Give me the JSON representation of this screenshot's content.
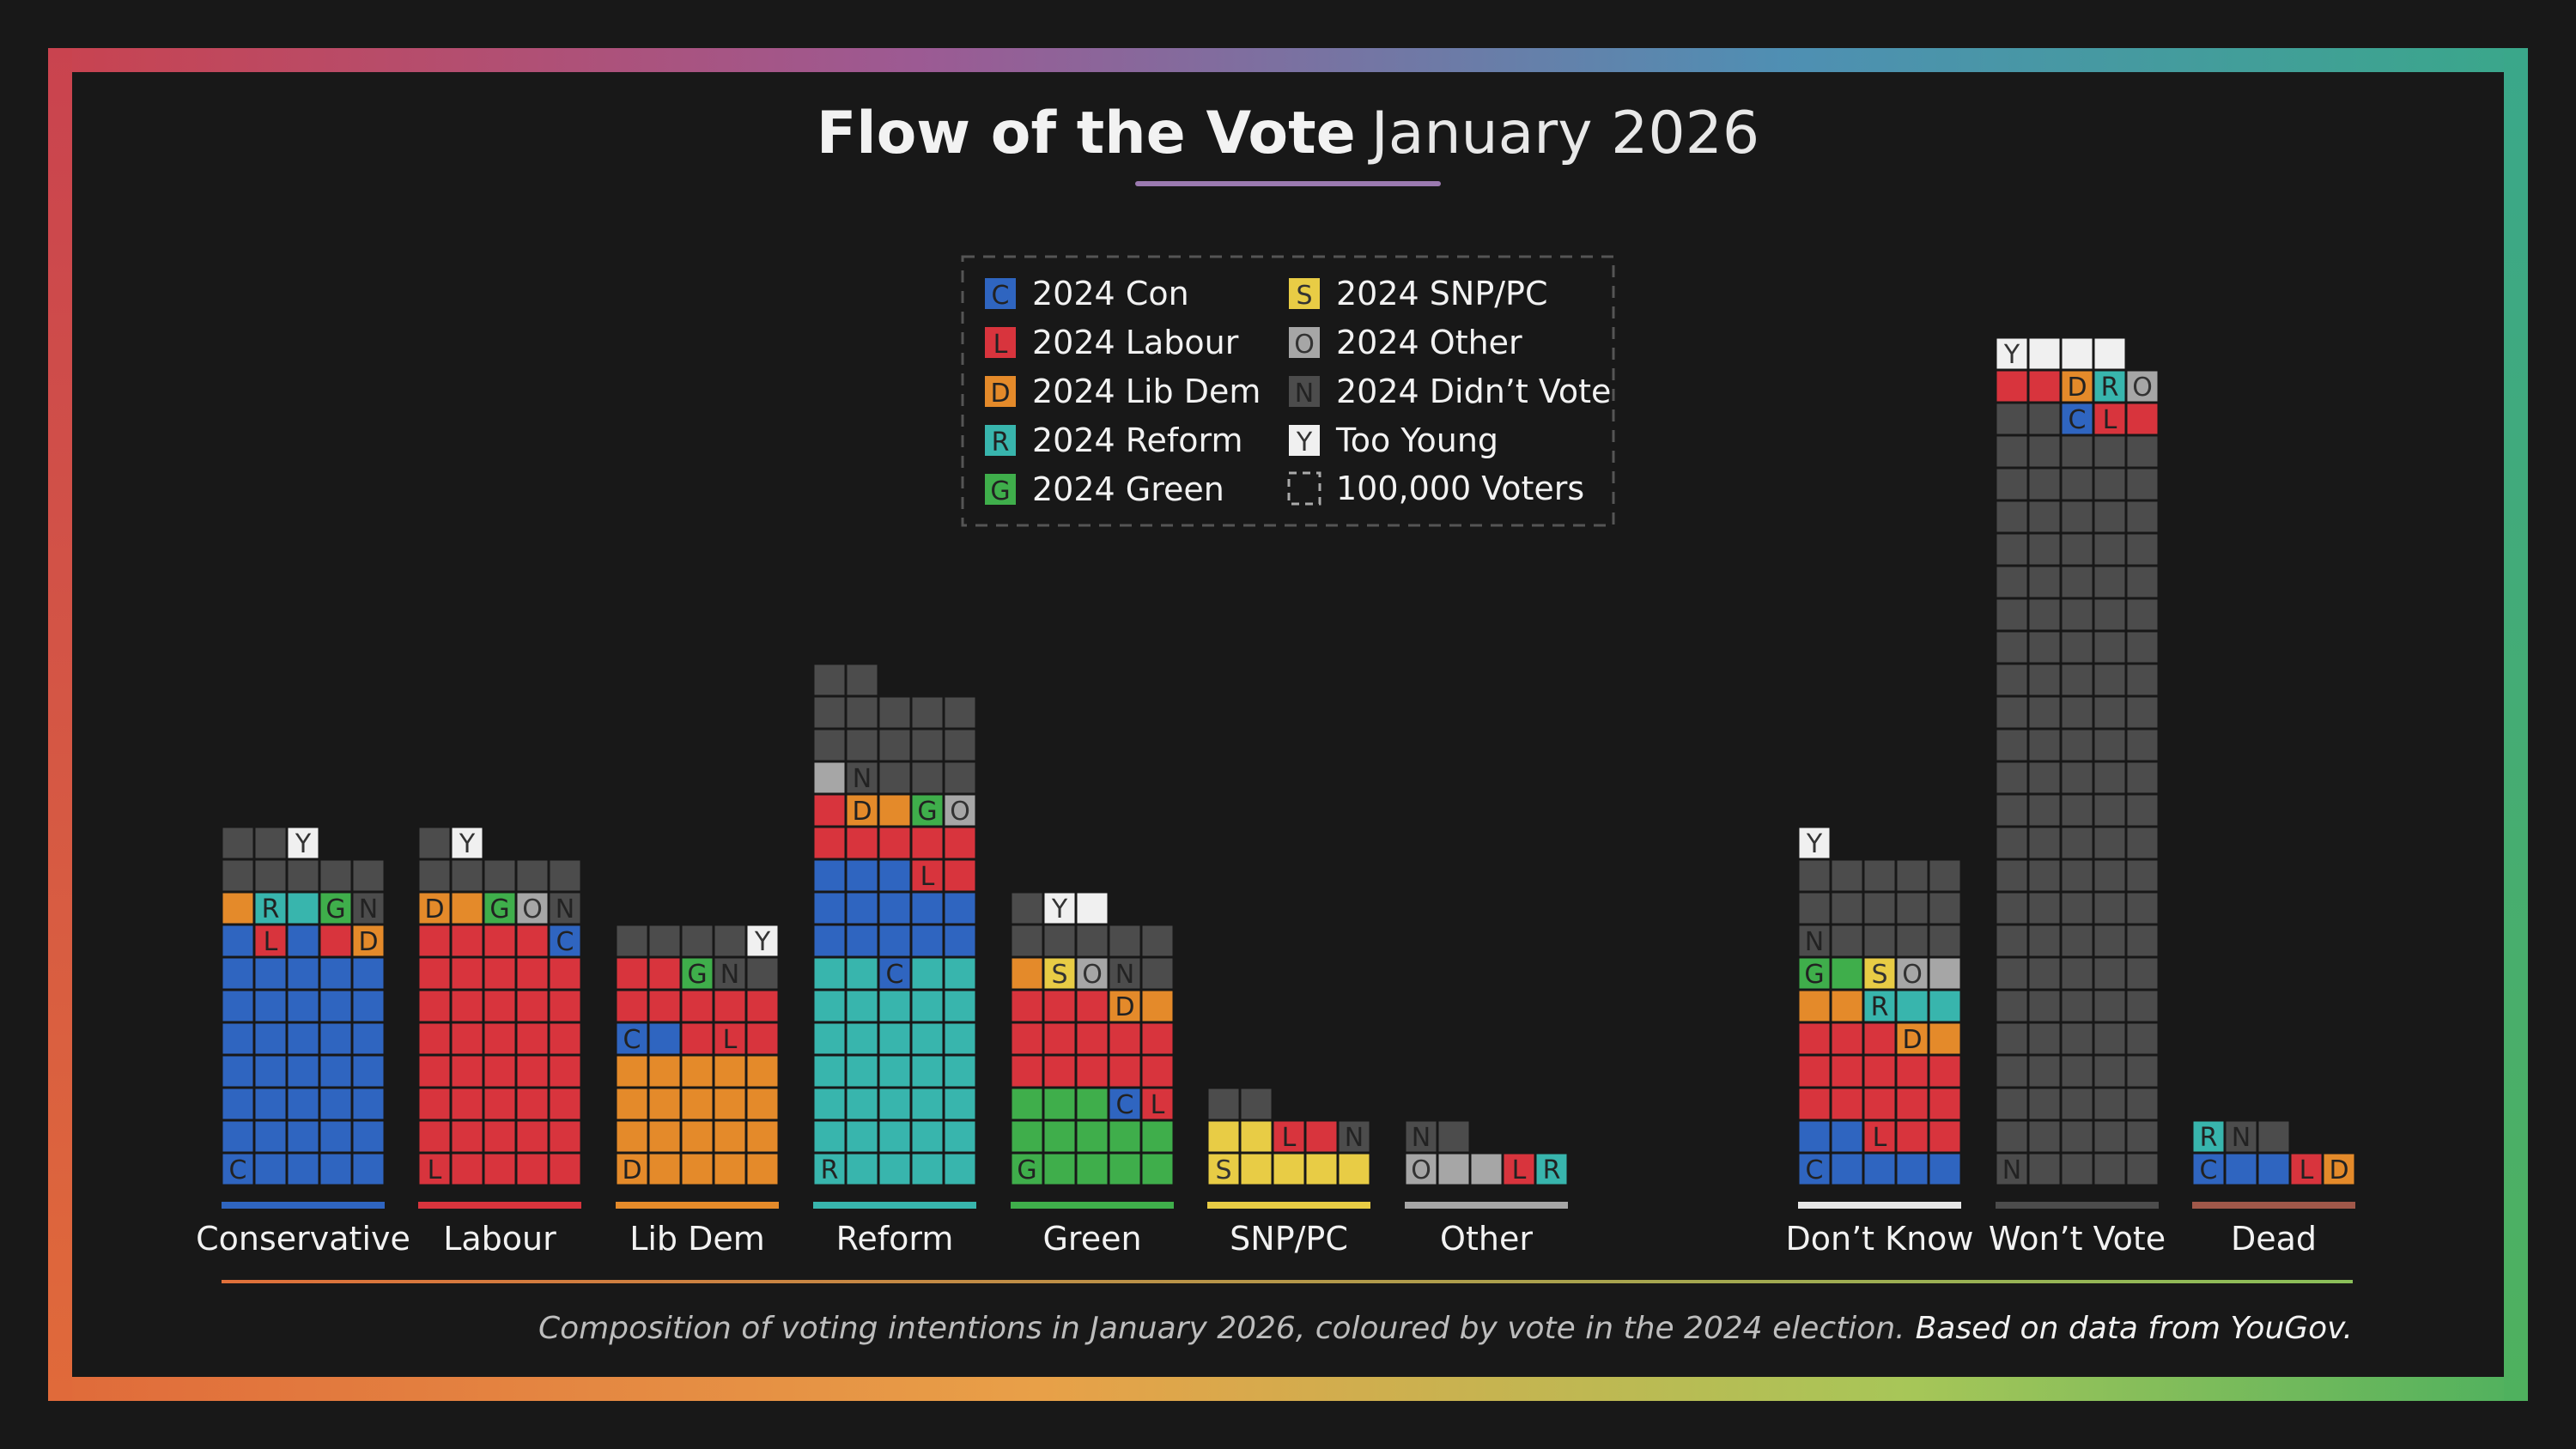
{
  "title": {
    "bold": "Flow of the Vote",
    "light": "January 2026"
  },
  "legend": {
    "items": [
      {
        "code": "C",
        "label": "2024 Con",
        "color": "#2f65c0"
      },
      {
        "code": "L",
        "label": "2024 Labour",
        "color": "#d8343d"
      },
      {
        "code": "D",
        "label": "2024 Lib Dem",
        "color": "#e48a2a"
      },
      {
        "code": "R",
        "label": "2024 Reform",
        "color": "#38b5ad"
      },
      {
        "code": "G",
        "label": "2024 Green",
        "color": "#3fae4b"
      },
      {
        "code": "S",
        "label": "2024 SNP/PC",
        "color": "#e8cc45"
      },
      {
        "code": "O",
        "label": "2024 Other",
        "color": "#a6a6a6"
      },
      {
        "code": "N",
        "label": "2024 Didn’t Vote",
        "color": "#4c4c4c"
      },
      {
        "code": "Y",
        "label": "Too Young",
        "color": "#f0f0f0"
      }
    ],
    "unit_label": "100,000 Voters"
  },
  "colors": {
    "background": "#181818",
    "frame_gradient": [
      "#c9434f",
      "#9c5a93",
      "#4f8fb3",
      "#3aa78a",
      "#e06a3a",
      "#e8a048",
      "#a7c658",
      "#4fb15e"
    ],
    "title_underline": "#9b7ab0",
    "bottom_rule": [
      "#e0703a",
      "#8bc05a"
    ],
    "text": "#f2f2f2",
    "footnote": "#bdbdbd"
  },
  "chart_data": {
    "type": "waffle-bar",
    "unit": "100,000 voters per square",
    "title": "Flow of the Vote January 2026",
    "columns_per_bar": 5,
    "bars": [
      {
        "name": "Conservative",
        "underline_color": "#2f65c0",
        "rows": [
          [
            "C",
            "C",
            "C",
            "C",
            "C"
          ],
          [
            "C",
            "C",
            "C",
            "C",
            "C"
          ],
          [
            "C",
            "C",
            "C",
            "C",
            "C"
          ],
          [
            "C",
            "C",
            "C",
            "C",
            "C"
          ],
          [
            "C",
            "C",
            "C",
            "C",
            "C"
          ],
          [
            "C",
            "C",
            "C",
            "C",
            "C"
          ],
          [
            "C",
            "C",
            "C",
            "C",
            "C"
          ],
          [
            "C",
            "L",
            "C",
            "L",
            "D"
          ],
          [
            "D",
            "R",
            "R",
            "G",
            "N"
          ],
          [
            "N",
            "N",
            "N",
            "N",
            "N"
          ],
          [
            "N",
            "N",
            "Y"
          ]
        ],
        "marked": [
          [
            0,
            0
          ],
          [
            7,
            1
          ],
          [
            7,
            4
          ],
          [
            8,
            1
          ],
          [
            8,
            3
          ],
          [
            8,
            4
          ],
          [
            10,
            2
          ]
        ]
      },
      {
        "name": "Labour",
        "underline_color": "#d8343d",
        "rows": [
          [
            "L",
            "L",
            "L",
            "L",
            "L"
          ],
          [
            "L",
            "L",
            "L",
            "L",
            "L"
          ],
          [
            "L",
            "L",
            "L",
            "L",
            "L"
          ],
          [
            "L",
            "L",
            "L",
            "L",
            "L"
          ],
          [
            "L",
            "L",
            "L",
            "L",
            "L"
          ],
          [
            "L",
            "L",
            "L",
            "L",
            "L"
          ],
          [
            "L",
            "L",
            "L",
            "L",
            "L"
          ],
          [
            "L",
            "L",
            "L",
            "L",
            "C"
          ],
          [
            "D",
            "D",
            "G",
            "O",
            "N"
          ],
          [
            "N",
            "N",
            "N",
            "N",
            "N"
          ],
          [
            "N",
            "Y"
          ]
        ],
        "marked": [
          [
            0,
            0
          ],
          [
            7,
            4
          ],
          [
            8,
            0
          ],
          [
            8,
            2
          ],
          [
            8,
            3
          ],
          [
            8,
            4
          ],
          [
            10,
            1
          ]
        ]
      },
      {
        "name": "Lib Dem",
        "underline_color": "#e48a2a",
        "rows": [
          [
            "D",
            "D",
            "D",
            "D",
            "D"
          ],
          [
            "D",
            "D",
            "D",
            "D",
            "D"
          ],
          [
            "D",
            "D",
            "D",
            "D",
            "D"
          ],
          [
            "D",
            "D",
            "D",
            "D",
            "D"
          ],
          [
            "C",
            "C",
            "L",
            "L",
            "L"
          ],
          [
            "L",
            "L",
            "L",
            "L",
            "L"
          ],
          [
            "L",
            "L",
            "G",
            "N",
            "N"
          ],
          [
            "N",
            "N",
            "N",
            "N",
            "Y"
          ]
        ],
        "marked": [
          [
            0,
            0
          ],
          [
            4,
            0
          ],
          [
            4,
            3
          ],
          [
            6,
            2
          ],
          [
            6,
            3
          ],
          [
            7,
            4
          ]
        ]
      },
      {
        "name": "Reform",
        "underline_color": "#38b5ad",
        "rows": [
          [
            "R",
            "R",
            "R",
            "R",
            "R"
          ],
          [
            "R",
            "R",
            "R",
            "R",
            "R"
          ],
          [
            "R",
            "R",
            "R",
            "R",
            "R"
          ],
          [
            "R",
            "R",
            "R",
            "R",
            "R"
          ],
          [
            "R",
            "R",
            "R",
            "R",
            "R"
          ],
          [
            "R",
            "R",
            "R",
            "R",
            "R"
          ],
          [
            "R",
            "R",
            "C",
            "R",
            "R"
          ],
          [
            "C",
            "C",
            "C",
            "C",
            "C"
          ],
          [
            "C",
            "C",
            "C",
            "C",
            "C"
          ],
          [
            "C",
            "C",
            "C",
            "L",
            "L"
          ],
          [
            "L",
            "L",
            "L",
            "L",
            "L"
          ],
          [
            "L",
            "D",
            "D",
            "G",
            "O"
          ],
          [
            "O",
            "N",
            "N",
            "N",
            "N"
          ],
          [
            "N",
            "N",
            "N",
            "N",
            "N"
          ],
          [
            "N",
            "N",
            "N",
            "N",
            "N"
          ],
          [
            "N",
            "N"
          ]
        ],
        "marked": [
          [
            0,
            0
          ],
          [
            6,
            2
          ],
          [
            9,
            3
          ],
          [
            11,
            1
          ],
          [
            11,
            3
          ],
          [
            11,
            4
          ],
          [
            12,
            1
          ]
        ]
      },
      {
        "name": "Green",
        "underline_color": "#3fae4b",
        "rows": [
          [
            "G",
            "G",
            "G",
            "G",
            "G"
          ],
          [
            "G",
            "G",
            "G",
            "G",
            "G"
          ],
          [
            "G",
            "G",
            "G",
            "C",
            "L"
          ],
          [
            "L",
            "L",
            "L",
            "L",
            "L"
          ],
          [
            "L",
            "L",
            "L",
            "L",
            "L"
          ],
          [
            "L",
            "L",
            "L",
            "D",
            "D"
          ],
          [
            "D",
            "S",
            "O",
            "N",
            "N"
          ],
          [
            "N",
            "N",
            "N",
            "N",
            "N"
          ],
          [
            "N",
            "Y",
            "Y"
          ]
        ],
        "marked": [
          [
            0,
            0
          ],
          [
            2,
            3
          ],
          [
            2,
            4
          ],
          [
            5,
            3
          ],
          [
            6,
            1
          ],
          [
            6,
            2
          ],
          [
            6,
            3
          ],
          [
            8,
            1
          ]
        ]
      },
      {
        "name": "SNP/PC",
        "underline_color": "#e8cc45",
        "rows": [
          [
            "S",
            "S",
            "S",
            "S",
            "S"
          ],
          [
            "S",
            "S",
            "L",
            "L",
            "N"
          ],
          [
            "N",
            "N"
          ]
        ],
        "marked": [
          [
            0,
            0
          ],
          [
            1,
            2
          ],
          [
            1,
            4
          ]
        ]
      },
      {
        "name": "Other",
        "underline_color": "#a6a6a6",
        "rows": [
          [
            "O",
            "O",
            "O",
            "L",
            "R"
          ],
          [
            "N",
            "N"
          ]
        ],
        "marked": [
          [
            0,
            0
          ],
          [
            0,
            3
          ],
          [
            0,
            4
          ],
          [
            1,
            0
          ]
        ]
      },
      {
        "name": "Don’t Know",
        "underline_color": "#e8e8e8",
        "rows": [
          [
            "C",
            "C",
            "C",
            "C",
            "C"
          ],
          [
            "C",
            "C",
            "L",
            "L",
            "L"
          ],
          [
            "L",
            "L",
            "L",
            "L",
            "L"
          ],
          [
            "L",
            "L",
            "L",
            "L",
            "L"
          ],
          [
            "L",
            "L",
            "L",
            "D",
            "D"
          ],
          [
            "D",
            "D",
            "R",
            "R",
            "R"
          ],
          [
            "G",
            "G",
            "S",
            "O",
            "O"
          ],
          [
            "N",
            "N",
            "N",
            "N",
            "N"
          ],
          [
            "N",
            "N",
            "N",
            "N",
            "N"
          ],
          [
            "N",
            "N",
            "N",
            "N",
            "N"
          ],
          [
            "Y"
          ]
        ],
        "marked": [
          [
            0,
            0
          ],
          [
            1,
            2
          ],
          [
            4,
            3
          ],
          [
            5,
            2
          ],
          [
            6,
            0
          ],
          [
            6,
            2
          ],
          [
            6,
            3
          ],
          [
            7,
            0
          ],
          [
            10,
            0
          ]
        ]
      },
      {
        "name": "Won’t Vote",
        "underline_color": "#4c4c4c",
        "rows": [
          [
            "N",
            "N",
            "N",
            "N",
            "N"
          ],
          [
            "N",
            "N",
            "N",
            "N",
            "N"
          ],
          [
            "N",
            "N",
            "N",
            "N",
            "N"
          ],
          [
            "N",
            "N",
            "N",
            "N",
            "N"
          ],
          [
            "N",
            "N",
            "N",
            "N",
            "N"
          ],
          [
            "N",
            "N",
            "N",
            "N",
            "N"
          ],
          [
            "N",
            "N",
            "N",
            "N",
            "N"
          ],
          [
            "N",
            "N",
            "N",
            "N",
            "N"
          ],
          [
            "N",
            "N",
            "N",
            "N",
            "N"
          ],
          [
            "N",
            "N",
            "N",
            "N",
            "N"
          ],
          [
            "N",
            "N",
            "N",
            "N",
            "N"
          ],
          [
            "N",
            "N",
            "N",
            "N",
            "N"
          ],
          [
            "N",
            "N",
            "N",
            "N",
            "N"
          ],
          [
            "N",
            "N",
            "N",
            "N",
            "N"
          ],
          [
            "N",
            "N",
            "N",
            "N",
            "N"
          ],
          [
            "N",
            "N",
            "N",
            "N",
            "N"
          ],
          [
            "N",
            "N",
            "N",
            "N",
            "N"
          ],
          [
            "N",
            "N",
            "N",
            "N",
            "N"
          ],
          [
            "N",
            "N",
            "N",
            "N",
            "N"
          ],
          [
            "N",
            "N",
            "N",
            "N",
            "N"
          ],
          [
            "N",
            "N",
            "N",
            "N",
            "N"
          ],
          [
            "N",
            "N",
            "N",
            "N",
            "N"
          ],
          [
            "N",
            "N",
            "N",
            "N",
            "N"
          ],
          [
            "N",
            "N",
            "C",
            "L",
            "L"
          ],
          [
            "L",
            "L",
            "D",
            "R",
            "O"
          ],
          [
            "Y",
            "Y",
            "Y",
            "Y"
          ]
        ],
        "marked": [
          [
            0,
            0
          ],
          [
            23,
            2
          ],
          [
            23,
            3
          ],
          [
            24,
            2
          ],
          [
            24,
            3
          ],
          [
            24,
            4
          ],
          [
            25,
            0
          ]
        ]
      },
      {
        "name": "Dead",
        "underline_color": "#a0584a",
        "rows": [
          [
            "C",
            "C",
            "C",
            "L",
            "D"
          ],
          [
            "R",
            "N",
            "N"
          ]
        ],
        "marked": [
          [
            0,
            0
          ],
          [
            0,
            3
          ],
          [
            0,
            4
          ],
          [
            1,
            0
          ],
          [
            1,
            1
          ]
        ]
      }
    ]
  },
  "footnote": {
    "text": "Composition of voting intentions in January 2026, coloured by vote in the 2024 election.",
    "source": "Based on data from YouGov."
  }
}
